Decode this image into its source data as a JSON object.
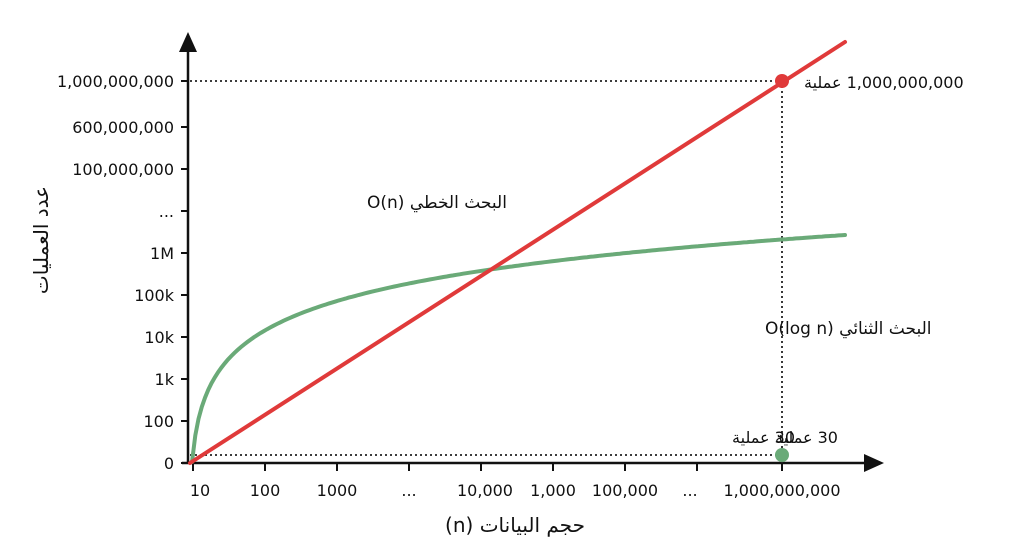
{
  "chart_data": {
    "type": "line",
    "title": "",
    "xlabel": "حجم البيانات (n)",
    "ylabel": "عدد العمليات",
    "x_ticks": [
      "10",
      "100",
      "1000",
      "...",
      "10,000",
      "1,000",
      "100,000",
      "...",
      "1,000,000,000"
    ],
    "y_ticks": [
      "0",
      "100",
      "1k",
      "10k",
      "100k",
      "1M",
      "...",
      "100,000,000",
      "600,000,000",
      "1,000,000,000"
    ],
    "grid": false,
    "legend": "inline labels",
    "series": [
      {
        "name": "البحث الخطي O(n)",
        "color": "#e03a3a",
        "shape": "linear",
        "highlight_point": {
          "x": "1,000,000,000",
          "y": "1,000,000,000",
          "label": "1,000,000,000 عملية"
        }
      },
      {
        "name": "البحث الثنائي O(log n)",
        "color": "#6aaa78",
        "shape": "logarithmic",
        "highlight_point": {
          "x": "1,000,000,000",
          "y": "30",
          "label": "30 عملية"
        }
      }
    ],
    "annotations": [
      {
        "text": "1,000,000,000 عملية",
        "anchor": "red point"
      },
      {
        "text": "30 عملية",
        "anchor": "left of green point"
      },
      {
        "text": "30 عملية",
        "anchor": "right of green point"
      }
    ]
  },
  "labels": {
    "linear": "البحث الخطي O(n)",
    "binary": "البحث الثنائي O(log n)",
    "red_point": "1,000,000,000 عملية",
    "green_left": "30 عملية",
    "green_right": "30 عملية",
    "xlabel": "حجم البيانات (n)",
    "ylabel": "عدد العمليات"
  },
  "colors": {
    "linear": "#e03a3a",
    "binary": "#6aaa78",
    "axis": "#111111"
  }
}
